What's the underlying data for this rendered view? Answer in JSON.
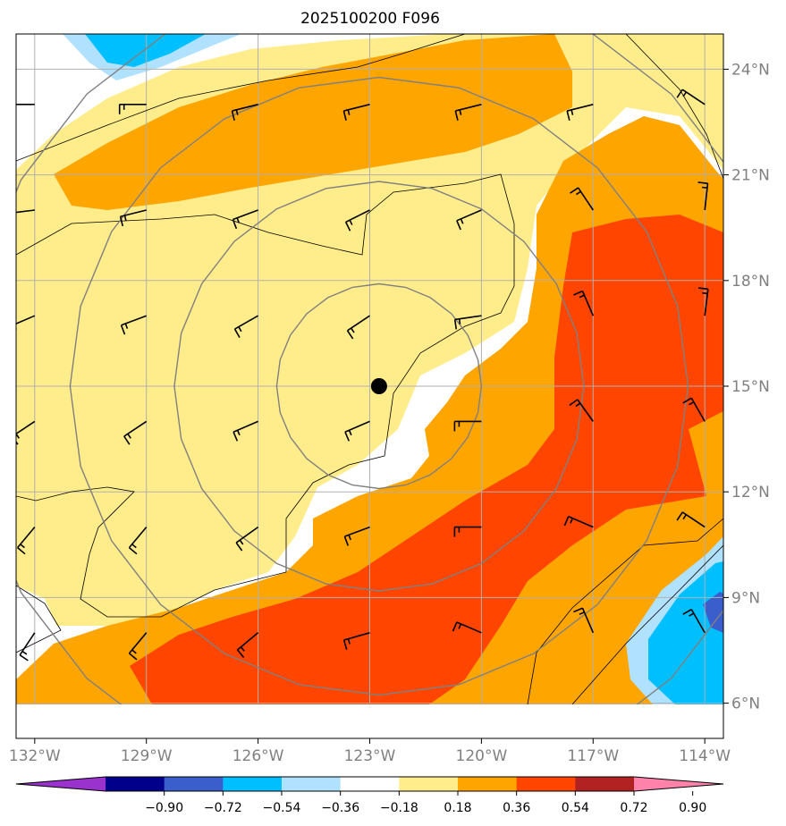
{
  "title": "2025100200 F096",
  "map": {
    "lon_range": [
      -132.5,
      -113.5
    ],
    "lat_range": [
      5.0,
      25.0
    ],
    "plot_lat_extent": [
      6.0,
      25.0
    ],
    "lat_ticks": [
      "6°N",
      "9°N",
      "12°N",
      "15°N",
      "18°N",
      "21°N",
      "24°N"
    ],
    "lat_values": [
      6,
      9,
      12,
      15,
      18,
      21,
      24
    ],
    "lon_ticks": [
      "132°W",
      "129°W",
      "126°W",
      "123°W",
      "120°W",
      "117°W",
      "114°W"
    ],
    "lon_values": [
      -132,
      -129,
      -126,
      -123,
      -120,
      -117,
      -114
    ],
    "grid": true,
    "storm_center": {
      "lon": -122.75,
      "lat": 15.0
    },
    "range_rings_deg": [
      2.75,
      5.5,
      8.3,
      11.1
    ]
  },
  "colorbar": {
    "labels": [
      "-0.90",
      "-0.72",
      "-0.54",
      "-0.36",
      "-0.18",
      "0.18",
      "0.36",
      "0.54",
      "0.72",
      "0.90"
    ],
    "colors": [
      "#9a32cd",
      "#00008b",
      "#3a5fcd",
      "#00bfff",
      "#b0e2ff",
      "#ffffff",
      "#ffec8b",
      "#ffa500",
      "#ff4500",
      "#b22222",
      "#ff82ab"
    ],
    "extend": "both"
  },
  "chart_data": {
    "type": "heatmap",
    "title": "2025100200 F096",
    "levels": [
      -0.9,
      -0.72,
      -0.54,
      -0.36,
      -0.18,
      0.18,
      0.36,
      0.54,
      0.72,
      0.9
    ],
    "wind_barbs": [
      {
        "lon": -132,
        "lat": 23,
        "u": 8,
        "v": 0
      },
      {
        "lon": -129,
        "lat": 23,
        "u": 8,
        "v": 0
      },
      {
        "lon": -126,
        "lat": 23,
        "u": 8,
        "v": 2
      },
      {
        "lon": -123,
        "lat": 23,
        "u": 8,
        "v": 2
      },
      {
        "lon": -120,
        "lat": 23,
        "u": 8,
        "v": 2
      },
      {
        "lon": -117,
        "lat": 23,
        "u": 8,
        "v": 2
      },
      {
        "lon": -114,
        "lat": 23,
        "u": 6,
        "v": -4
      },
      {
        "lon": -132,
        "lat": 20,
        "u": 8,
        "v": 1
      },
      {
        "lon": -129,
        "lat": 20,
        "u": 8,
        "v": 2
      },
      {
        "lon": -126,
        "lat": 20,
        "u": 8,
        "v": 3
      },
      {
        "lon": -123,
        "lat": 20,
        "u": 8,
        "v": 4
      },
      {
        "lon": -120,
        "lat": 20,
        "u": 7,
        "v": 3
      },
      {
        "lon": -117,
        "lat": 20,
        "u": 4,
        "v": -6
      },
      {
        "lon": -114,
        "lat": 20,
        "u": -1,
        "v": -9
      },
      {
        "lon": -132,
        "lat": 17,
        "u": 7,
        "v": 3
      },
      {
        "lon": -129,
        "lat": 17,
        "u": 8,
        "v": 3
      },
      {
        "lon": -126,
        "lat": 17,
        "u": 7,
        "v": 4
      },
      {
        "lon": -123,
        "lat": 17,
        "u": 6,
        "v": 4
      },
      {
        "lon": -120,
        "lat": 17,
        "u": 7,
        "v": 1
      },
      {
        "lon": -117,
        "lat": 17,
        "u": 3,
        "v": -7
      },
      {
        "lon": -114,
        "lat": 17,
        "u": -1,
        "v": -8
      },
      {
        "lon": -132,
        "lat": 14,
        "u": 6,
        "v": 4
      },
      {
        "lon": -129,
        "lat": 14,
        "u": 6,
        "v": 4
      },
      {
        "lon": -126,
        "lat": 14,
        "u": 7,
        "v": 3
      },
      {
        "lon": -123,
        "lat": 14,
        "u": 7,
        "v": 3
      },
      {
        "lon": -120,
        "lat": 14,
        "u": 8,
        "v": 0
      },
      {
        "lon": -117,
        "lat": 14,
        "u": 5,
        "v": -7
      },
      {
        "lon": -114,
        "lat": 14,
        "u": 4,
        "v": -7
      },
      {
        "lon": -132,
        "lat": 11,
        "u": 5,
        "v": 6
      },
      {
        "lon": -129,
        "lat": 11,
        "u": 5,
        "v": 6
      },
      {
        "lon": -126,
        "lat": 11,
        "u": 7,
        "v": 5
      },
      {
        "lon": -123,
        "lat": 11,
        "u": 8,
        "v": 3
      },
      {
        "lon": -120,
        "lat": 11,
        "u": 8,
        "v": 0
      },
      {
        "lon": -117,
        "lat": 11,
        "u": 7,
        "v": -3
      },
      {
        "lon": -114,
        "lat": 11,
        "u": 6,
        "v": -4
      },
      {
        "lon": -132,
        "lat": 8,
        "u": 4,
        "v": 6
      },
      {
        "lon": -129,
        "lat": 8,
        "u": 5,
        "v": 6
      },
      {
        "lon": -126,
        "lat": 8,
        "u": 6,
        "v": 5
      },
      {
        "lon": -123,
        "lat": 8,
        "u": 7,
        "v": 2
      },
      {
        "lon": -120,
        "lat": 8,
        "u": 7,
        "v": -3
      },
      {
        "lon": -117,
        "lat": 8,
        "u": 3,
        "v": -7
      },
      {
        "lon": -114,
        "lat": 8,
        "u": 4,
        "v": -7
      }
    ]
  }
}
